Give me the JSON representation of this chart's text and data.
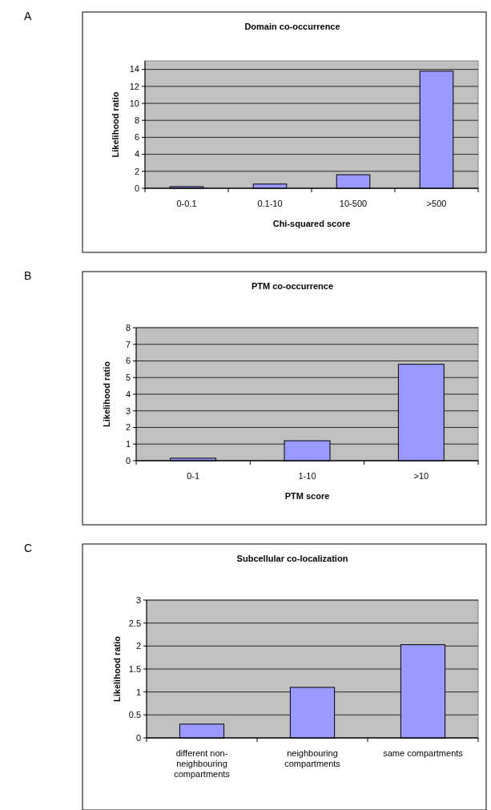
{
  "chart_data": [
    {
      "type": "bar",
      "title": "Domain co-occurrence",
      "xlabel": "Chi-squared score",
      "ylabel": "Likelihood ratio",
      "annotations": [
        "A"
      ],
      "categories": [
        "0-0.1",
        "0.1-10",
        "10-500",
        ">500"
      ],
      "values": [
        0.2,
        0.5,
        1.6,
        13.8
      ],
      "color": "#9999ff",
      "ylim": [
        0,
        15
      ],
      "yticks": [
        0,
        2,
        4,
        6,
        8,
        10,
        12,
        14
      ],
      "grid": "y"
    },
    {
      "type": "bar",
      "title": "PTM co-occurrence",
      "xlabel": "PTM score",
      "ylabel": "Likelihood ratio",
      "annotations": [
        "B"
      ],
      "categories": [
        "0-1",
        "1-10",
        ">10"
      ],
      "values": [
        0.15,
        1.2,
        5.8
      ],
      "color": "#9999ff",
      "ylim": [
        0,
        8
      ],
      "yticks": [
        0,
        1,
        2,
        3,
        4,
        5,
        6,
        7,
        8
      ],
      "grid": "y"
    },
    {
      "type": "bar",
      "title": "Subcellular co-localization",
      "ylabel": "Likelihood ratio",
      "annotations": [
        "C"
      ],
      "categories": [
        "different non-neighbouring compartments",
        "neighbouring compartments",
        "same compartments"
      ],
      "values": [
        0.3,
        1.1,
        2.03
      ],
      "color": "#9999ff",
      "ylim": [
        0,
        3
      ],
      "yticks": [
        0,
        0.5,
        1,
        1.5,
        2,
        2.5,
        3
      ],
      "grid": "y"
    }
  ]
}
